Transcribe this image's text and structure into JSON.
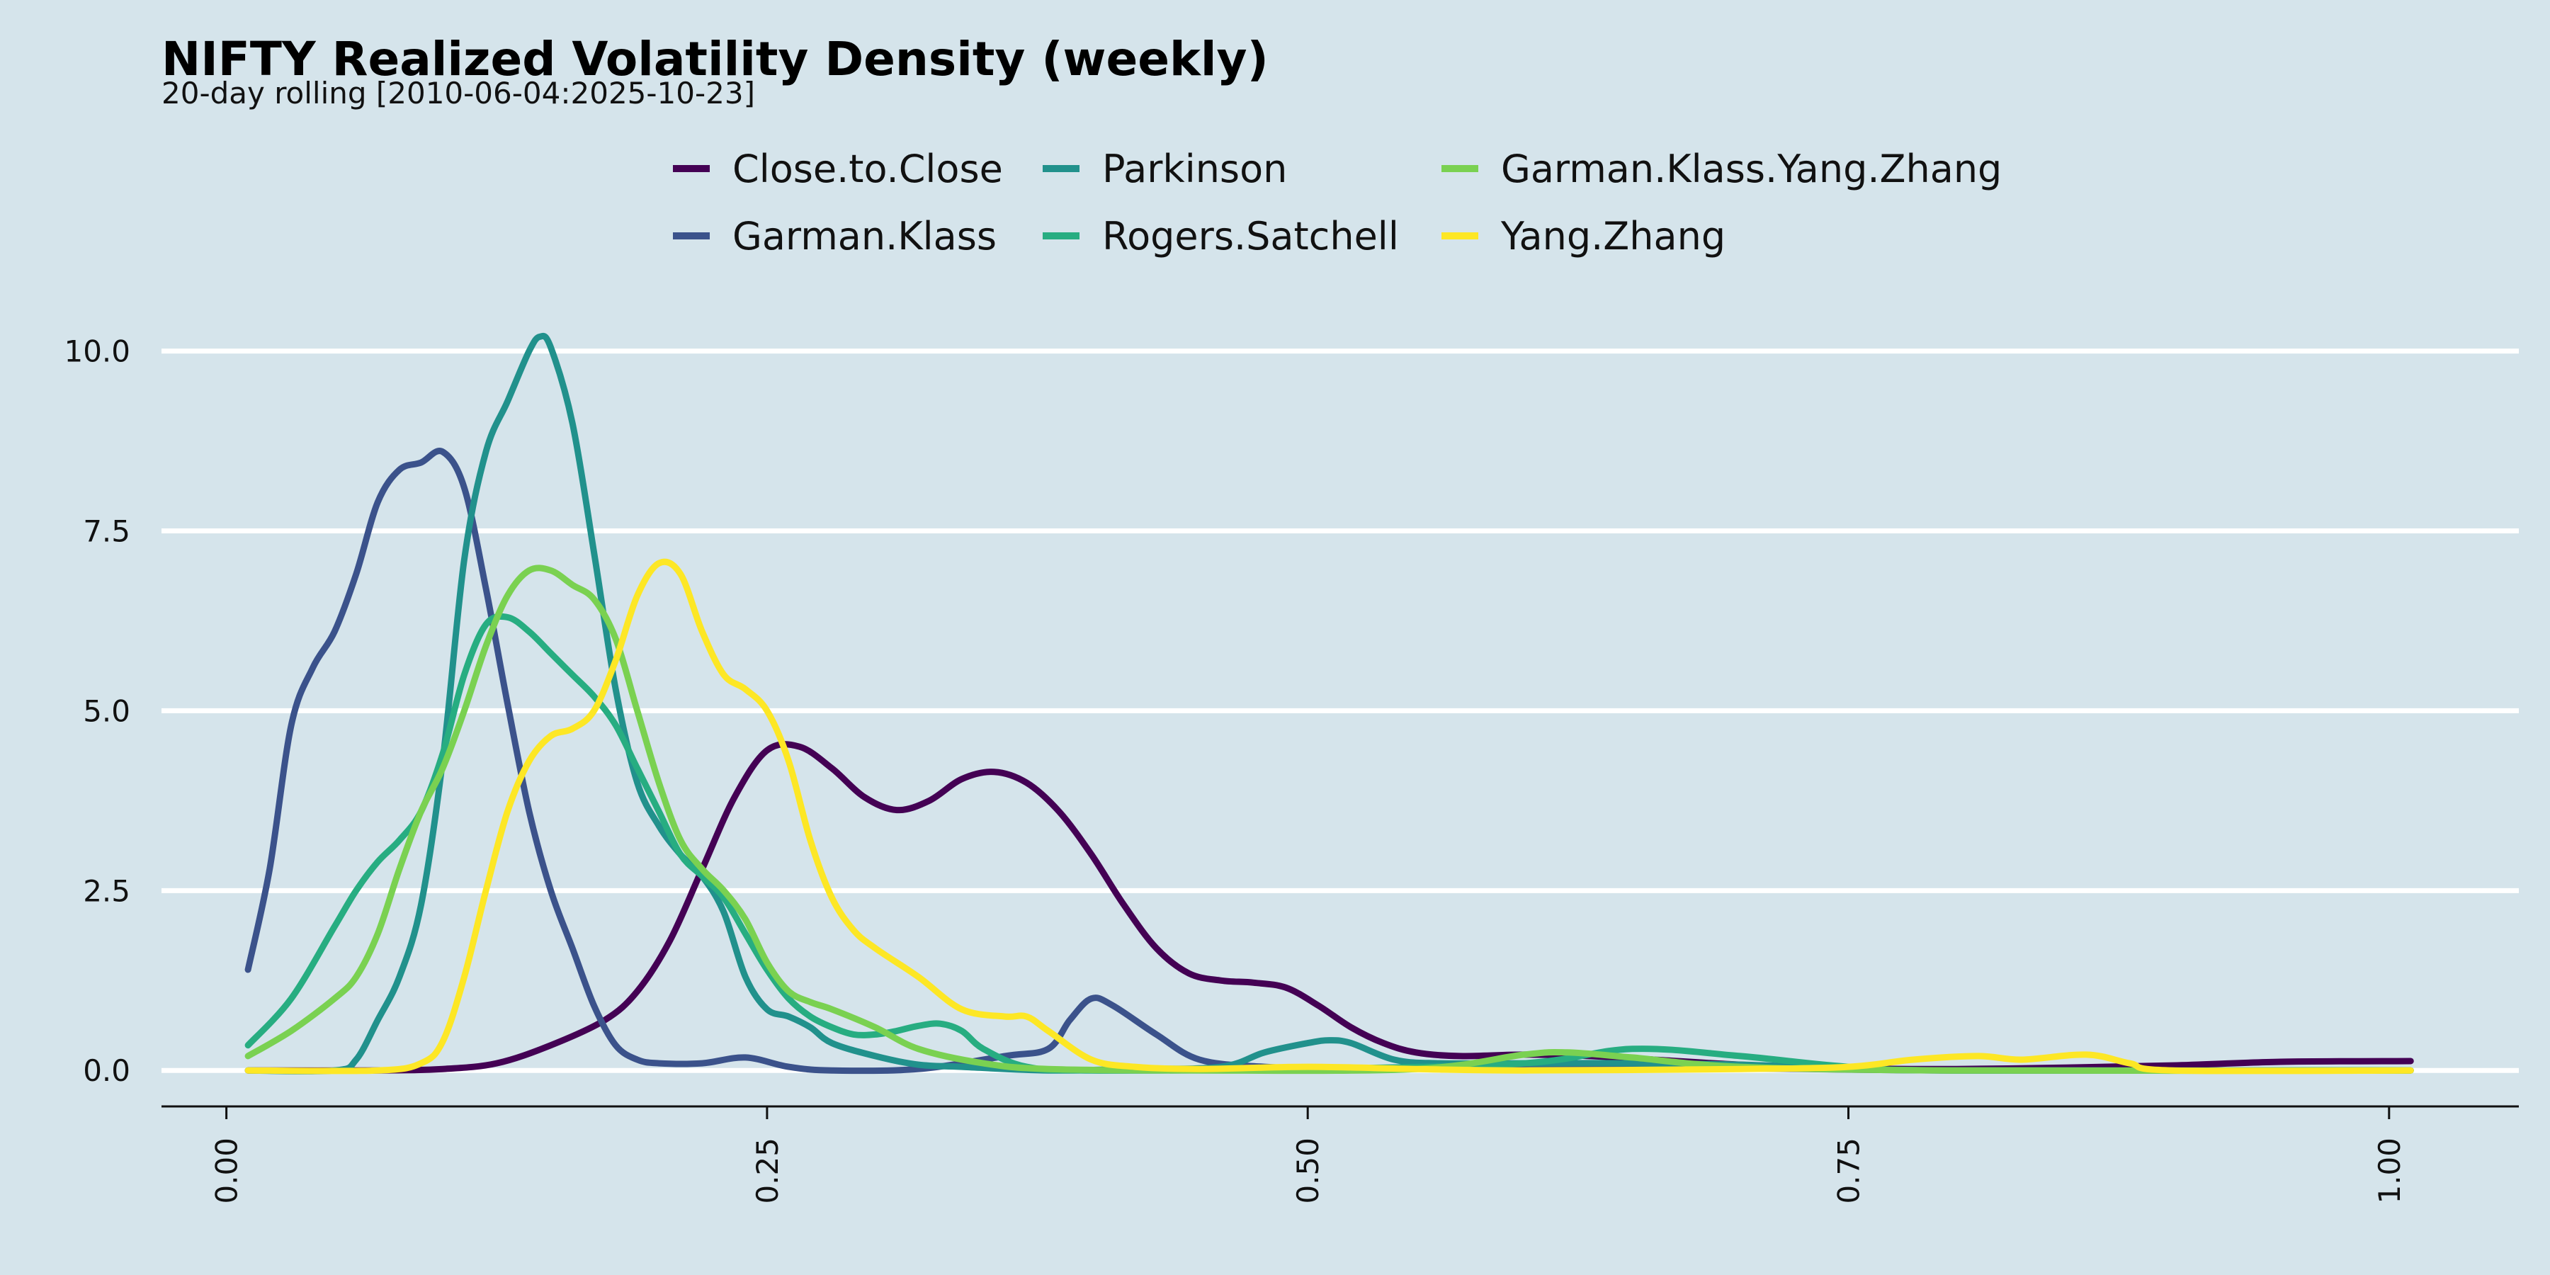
{
  "chart_data": {
    "type": "line",
    "title": "NIFTY Realized Volatility Density (weekly)",
    "subtitle": "20-day rolling [2010-06-04:2025-10-23]",
    "xlabel": "",
    "ylabel": "",
    "xlim": [
      -0.03,
      1.06
    ],
    "ylim": [
      -0.5,
      10.4
    ],
    "x_ticks": [
      0.0,
      0.25,
      0.5,
      0.75,
      1.0
    ],
    "x_tick_labels": [
      "0.00",
      "0.25",
      "0.50",
      "0.75",
      "1.00"
    ],
    "y_ticks": [
      0.0,
      2.5,
      5.0,
      7.5,
      10.0
    ],
    "y_tick_labels": [
      "0.0",
      "2.5",
      "5.0",
      "7.5",
      "10.0"
    ],
    "grid": "horizontal",
    "legend_position": "top",
    "series": [
      {
        "name": "Close.to.Close",
        "color": "#440154",
        "points": [
          [
            0.01,
            0
          ],
          [
            0.07,
            0
          ],
          [
            0.1,
            0.02
          ],
          [
            0.125,
            0.1
          ],
          [
            0.15,
            0.35
          ],
          [
            0.175,
            0.7
          ],
          [
            0.19,
            1.1
          ],
          [
            0.205,
            1.8
          ],
          [
            0.22,
            2.8
          ],
          [
            0.235,
            3.8
          ],
          [
            0.25,
            4.45
          ],
          [
            0.265,
            4.5
          ],
          [
            0.28,
            4.2
          ],
          [
            0.295,
            3.8
          ],
          [
            0.31,
            3.62
          ],
          [
            0.325,
            3.75
          ],
          [
            0.34,
            4.05
          ],
          [
            0.355,
            4.15
          ],
          [
            0.37,
            4.0
          ],
          [
            0.385,
            3.6
          ],
          [
            0.4,
            3.0
          ],
          [
            0.415,
            2.3
          ],
          [
            0.43,
            1.7
          ],
          [
            0.445,
            1.35
          ],
          [
            0.46,
            1.25
          ],
          [
            0.475,
            1.22
          ],
          [
            0.49,
            1.15
          ],
          [
            0.505,
            0.9
          ],
          [
            0.52,
            0.6
          ],
          [
            0.535,
            0.38
          ],
          [
            0.55,
            0.25
          ],
          [
            0.57,
            0.2
          ],
          [
            0.6,
            0.22
          ],
          [
            0.63,
            0.2
          ],
          [
            0.66,
            0.15
          ],
          [
            0.7,
            0.08
          ],
          [
            0.75,
            0.03
          ],
          [
            0.8,
            0.02
          ],
          [
            0.85,
            0.04
          ],
          [
            0.9,
            0.07
          ],
          [
            0.95,
            0.12
          ],
          [
            1.01,
            0.13
          ]
        ]
      },
      {
        "name": "Garman.Klass",
        "color": "#3b528b",
        "points": [
          [
            0.01,
            1.4
          ],
          [
            0.02,
            2.8
          ],
          [
            0.03,
            4.8
          ],
          [
            0.04,
            5.6
          ],
          [
            0.05,
            6.1
          ],
          [
            0.06,
            6.9
          ],
          [
            0.07,
            7.9
          ],
          [
            0.08,
            8.35
          ],
          [
            0.09,
            8.45
          ],
          [
            0.1,
            8.6
          ],
          [
            0.11,
            8.1
          ],
          [
            0.12,
            6.7
          ],
          [
            0.13,
            5.1
          ],
          [
            0.14,
            3.6
          ],
          [
            0.15,
            2.5
          ],
          [
            0.16,
            1.7
          ],
          [
            0.17,
            0.9
          ],
          [
            0.18,
            0.35
          ],
          [
            0.19,
            0.15
          ],
          [
            0.2,
            0.1
          ],
          [
            0.22,
            0.1
          ],
          [
            0.24,
            0.18
          ],
          [
            0.26,
            0.05
          ],
          [
            0.28,
            0.0
          ],
          [
            0.32,
            0.02
          ],
          [
            0.36,
            0.2
          ],
          [
            0.38,
            0.3
          ],
          [
            0.39,
            0.7
          ],
          [
            0.4,
            1.0
          ],
          [
            0.41,
            0.9
          ],
          [
            0.43,
            0.5
          ],
          [
            0.45,
            0.15
          ],
          [
            0.48,
            0.05
          ],
          [
            0.52,
            0.02
          ],
          [
            0.6,
            0.05
          ],
          [
            0.7,
            0.03
          ],
          [
            0.8,
            0.0
          ],
          [
            1.01,
            0.0
          ]
        ]
      },
      {
        "name": "Parkinson",
        "color": "#21918c",
        "points": [
          [
            0.01,
            0
          ],
          [
            0.05,
            0
          ],
          [
            0.06,
            0.15
          ],
          [
            0.07,
            0.7
          ],
          [
            0.08,
            1.3
          ],
          [
            0.09,
            2.3
          ],
          [
            0.1,
            4.3
          ],
          [
            0.11,
            7.1
          ],
          [
            0.12,
            8.6
          ],
          [
            0.13,
            9.3
          ],
          [
            0.14,
            10.0
          ],
          [
            0.145,
            10.2
          ],
          [
            0.15,
            10.05
          ],
          [
            0.16,
            9.0
          ],
          [
            0.17,
            7.2
          ],
          [
            0.18,
            5.3
          ],
          [
            0.19,
            4.0
          ],
          [
            0.2,
            3.4
          ],
          [
            0.21,
            3.0
          ],
          [
            0.22,
            2.7
          ],
          [
            0.23,
            2.2
          ],
          [
            0.24,
            1.3
          ],
          [
            0.25,
            0.85
          ],
          [
            0.26,
            0.75
          ],
          [
            0.27,
            0.6
          ],
          [
            0.28,
            0.38
          ],
          [
            0.3,
            0.2
          ],
          [
            0.32,
            0.08
          ],
          [
            0.34,
            0.05
          ],
          [
            0.38,
            0.0
          ],
          [
            0.42,
            0.02
          ],
          [
            0.46,
            0.05
          ],
          [
            0.48,
            0.25
          ],
          [
            0.5,
            0.38
          ],
          [
            0.51,
            0.42
          ],
          [
            0.52,
            0.38
          ],
          [
            0.54,
            0.15
          ],
          [
            0.56,
            0.1
          ],
          [
            0.6,
            0.1
          ],
          [
            0.65,
            0.1
          ],
          [
            0.7,
            0.08
          ],
          [
            0.75,
            0.03
          ],
          [
            0.8,
            0.0
          ],
          [
            1.01,
            0.0
          ]
        ]
      },
      {
        "name": "Rogers.Satchell",
        "color": "#27ad81",
        "points": [
          [
            0.01,
            0.35
          ],
          [
            0.03,
            1.0
          ],
          [
            0.05,
            2.0
          ],
          [
            0.06,
            2.5
          ],
          [
            0.07,
            2.9
          ],
          [
            0.08,
            3.2
          ],
          [
            0.09,
            3.6
          ],
          [
            0.1,
            4.4
          ],
          [
            0.11,
            5.5
          ],
          [
            0.12,
            6.2
          ],
          [
            0.13,
            6.3
          ],
          [
            0.14,
            6.1
          ],
          [
            0.15,
            5.8
          ],
          [
            0.16,
            5.5
          ],
          [
            0.17,
            5.2
          ],
          [
            0.18,
            4.8
          ],
          [
            0.19,
            4.2
          ],
          [
            0.2,
            3.6
          ],
          [
            0.21,
            3.0
          ],
          [
            0.22,
            2.7
          ],
          [
            0.23,
            2.4
          ],
          [
            0.24,
            1.9
          ],
          [
            0.25,
            1.4
          ],
          [
            0.26,
            1.0
          ],
          [
            0.27,
            0.75
          ],
          [
            0.28,
            0.6
          ],
          [
            0.29,
            0.5
          ],
          [
            0.3,
            0.5
          ],
          [
            0.31,
            0.55
          ],
          [
            0.32,
            0.62
          ],
          [
            0.33,
            0.65
          ],
          [
            0.34,
            0.55
          ],
          [
            0.35,
            0.3
          ],
          [
            0.37,
            0.05
          ],
          [
            0.4,
            0.0
          ],
          [
            0.5,
            0.02
          ],
          [
            0.6,
            0.1
          ],
          [
            0.65,
            0.3
          ],
          [
            0.7,
            0.2
          ],
          [
            0.75,
            0.05
          ],
          [
            0.8,
            0.0
          ],
          [
            1.01,
            0.0
          ]
        ]
      },
      {
        "name": "Garman.Klass.Yang.Zhang",
        "color": "#7ad151",
        "points": [
          [
            0.01,
            0.2
          ],
          [
            0.03,
            0.55
          ],
          [
            0.05,
            1.0
          ],
          [
            0.06,
            1.3
          ],
          [
            0.07,
            1.9
          ],
          [
            0.08,
            2.8
          ],
          [
            0.09,
            3.6
          ],
          [
            0.1,
            4.2
          ],
          [
            0.11,
            5.0
          ],
          [
            0.12,
            5.9
          ],
          [
            0.13,
            6.6
          ],
          [
            0.14,
            6.95
          ],
          [
            0.15,
            6.95
          ],
          [
            0.16,
            6.75
          ],
          [
            0.17,
            6.55
          ],
          [
            0.18,
            6.0
          ],
          [
            0.19,
            5.0
          ],
          [
            0.2,
            4.0
          ],
          [
            0.21,
            3.2
          ],
          [
            0.22,
            2.8
          ],
          [
            0.23,
            2.5
          ],
          [
            0.24,
            2.1
          ],
          [
            0.25,
            1.5
          ],
          [
            0.26,
            1.1
          ],
          [
            0.27,
            0.95
          ],
          [
            0.28,
            0.85
          ],
          [
            0.3,
            0.6
          ],
          [
            0.32,
            0.3
          ],
          [
            0.35,
            0.1
          ],
          [
            0.38,
            0.02
          ],
          [
            0.45,
            0.0
          ],
          [
            0.55,
            0.02
          ],
          [
            0.6,
            0.22
          ],
          [
            0.62,
            0.25
          ],
          [
            0.65,
            0.18
          ],
          [
            0.7,
            0.05
          ],
          [
            0.8,
            0.0
          ],
          [
            1.01,
            0.0
          ]
        ]
      },
      {
        "name": "Yang.Zhang",
        "color": "#fde725",
        "points": [
          [
            0.01,
            0
          ],
          [
            0.07,
            0
          ],
          [
            0.09,
            0.1
          ],
          [
            0.1,
            0.4
          ],
          [
            0.11,
            1.3
          ],
          [
            0.12,
            2.5
          ],
          [
            0.13,
            3.6
          ],
          [
            0.14,
            4.3
          ],
          [
            0.15,
            4.65
          ],
          [
            0.16,
            4.75
          ],
          [
            0.17,
            5.0
          ],
          [
            0.18,
            5.7
          ],
          [
            0.19,
            6.6
          ],
          [
            0.2,
            7.05
          ],
          [
            0.21,
            6.9
          ],
          [
            0.22,
            6.1
          ],
          [
            0.23,
            5.5
          ],
          [
            0.24,
            5.3
          ],
          [
            0.25,
            5.0
          ],
          [
            0.26,
            4.3
          ],
          [
            0.27,
            3.2
          ],
          [
            0.28,
            2.4
          ],
          [
            0.29,
            1.95
          ],
          [
            0.3,
            1.7
          ],
          [
            0.32,
            1.3
          ],
          [
            0.34,
            0.85
          ],
          [
            0.36,
            0.75
          ],
          [
            0.37,
            0.75
          ],
          [
            0.38,
            0.55
          ],
          [
            0.4,
            0.15
          ],
          [
            0.42,
            0.05
          ],
          [
            0.45,
            0.02
          ],
          [
            0.5,
            0.05
          ],
          [
            0.55,
            0.02
          ],
          [
            0.6,
            0.0
          ],
          [
            0.7,
            0.02
          ],
          [
            0.75,
            0.05
          ],
          [
            0.78,
            0.15
          ],
          [
            0.81,
            0.2
          ],
          [
            0.83,
            0.15
          ],
          [
            0.86,
            0.22
          ],
          [
            0.88,
            0.1
          ],
          [
            0.9,
            0.0
          ],
          [
            1.01,
            0.0
          ]
        ]
      }
    ]
  }
}
